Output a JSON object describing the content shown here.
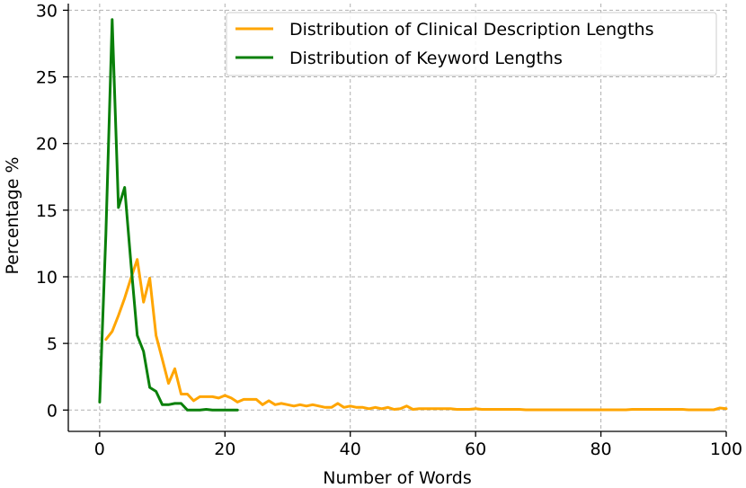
{
  "chart_data": {
    "type": "line",
    "title": "",
    "xlabel": "Number of Words",
    "ylabel": "Percentage %",
    "xlim": [
      -5,
      100
    ],
    "ylim": [
      -1.6,
      30.5
    ],
    "xticks": [
      0,
      20,
      40,
      60,
      80,
      100
    ],
    "yticks": [
      0,
      5,
      10,
      15,
      20,
      25,
      30
    ],
    "grid": true,
    "legend_position": "top-right",
    "series": [
      {
        "name": "Distribution of Clinical Description Lengths",
        "color": "#ffa500",
        "x": [
          1,
          2,
          3,
          4,
          5,
          6,
          7,
          8,
          9,
          10,
          11,
          12,
          13,
          14,
          15,
          16,
          17,
          18,
          19,
          20,
          21,
          22,
          23,
          24,
          25,
          26,
          27,
          28,
          29,
          30,
          31,
          32,
          33,
          34,
          35,
          36,
          37,
          38,
          39,
          40,
          41,
          42,
          43,
          44,
          45,
          46,
          47,
          48,
          49,
          50,
          51,
          52,
          53,
          54,
          55,
          56,
          57,
          58,
          59,
          60,
          61,
          62,
          63,
          64,
          65,
          66,
          67,
          68,
          69,
          70,
          71,
          72,
          73,
          74,
          75,
          76,
          77,
          78,
          79,
          80,
          81,
          82,
          83,
          84,
          85,
          86,
          87,
          88,
          89,
          90,
          91,
          92,
          93,
          94,
          95,
          96,
          97,
          98,
          99,
          100
        ],
        "y": [
          5.3,
          5.9,
          7.1,
          8.4,
          9.9,
          11.3,
          8.1,
          9.9,
          5.6,
          3.8,
          2.0,
          3.1,
          1.2,
          1.2,
          0.7,
          1.0,
          1.0,
          1.0,
          0.9,
          1.1,
          0.9,
          0.6,
          0.8,
          0.8,
          0.8,
          0.4,
          0.7,
          0.4,
          0.5,
          0.4,
          0.3,
          0.4,
          0.3,
          0.4,
          0.3,
          0.2,
          0.2,
          0.5,
          0.2,
          0.3,
          0.2,
          0.2,
          0.1,
          0.2,
          0.1,
          0.2,
          0.05,
          0.1,
          0.3,
          0.05,
          0.1,
          0.1,
          0.1,
          0.1,
          0.1,
          0.1,
          0.05,
          0.05,
          0.05,
          0.1,
          0.05,
          0.05,
          0.05,
          0.05,
          0.05,
          0.05,
          0.05,
          0.02,
          0.02,
          0.02,
          0.02,
          0.02,
          0.02,
          0.02,
          0.02,
          0.02,
          0.02,
          0.02,
          0.02,
          0.02,
          0.02,
          0.02,
          0.02,
          0.02,
          0.05,
          0.05,
          0.05,
          0.05,
          0.05,
          0.05,
          0.05,
          0.05,
          0.05,
          0.02,
          0.02,
          0.02,
          0.02,
          0.02,
          0.15,
          0.1
        ]
      },
      {
        "name": "Distribution of Keyword Lengths",
        "color": "#0a800a",
        "x": [
          0,
          1,
          2,
          3,
          4,
          5,
          6,
          7,
          8,
          9,
          10,
          11,
          12,
          13,
          14,
          15,
          16,
          17,
          18,
          19,
          20,
          21,
          22
        ],
        "y": [
          0.6,
          13.2,
          29.3,
          15.2,
          16.7,
          11.0,
          5.6,
          4.4,
          1.7,
          1.4,
          0.4,
          0.4,
          0.5,
          0.5,
          0.0,
          0.0,
          0.0,
          0.05,
          0.0,
          0.0,
          0.0,
          0.0,
          0.0
        ]
      }
    ]
  }
}
